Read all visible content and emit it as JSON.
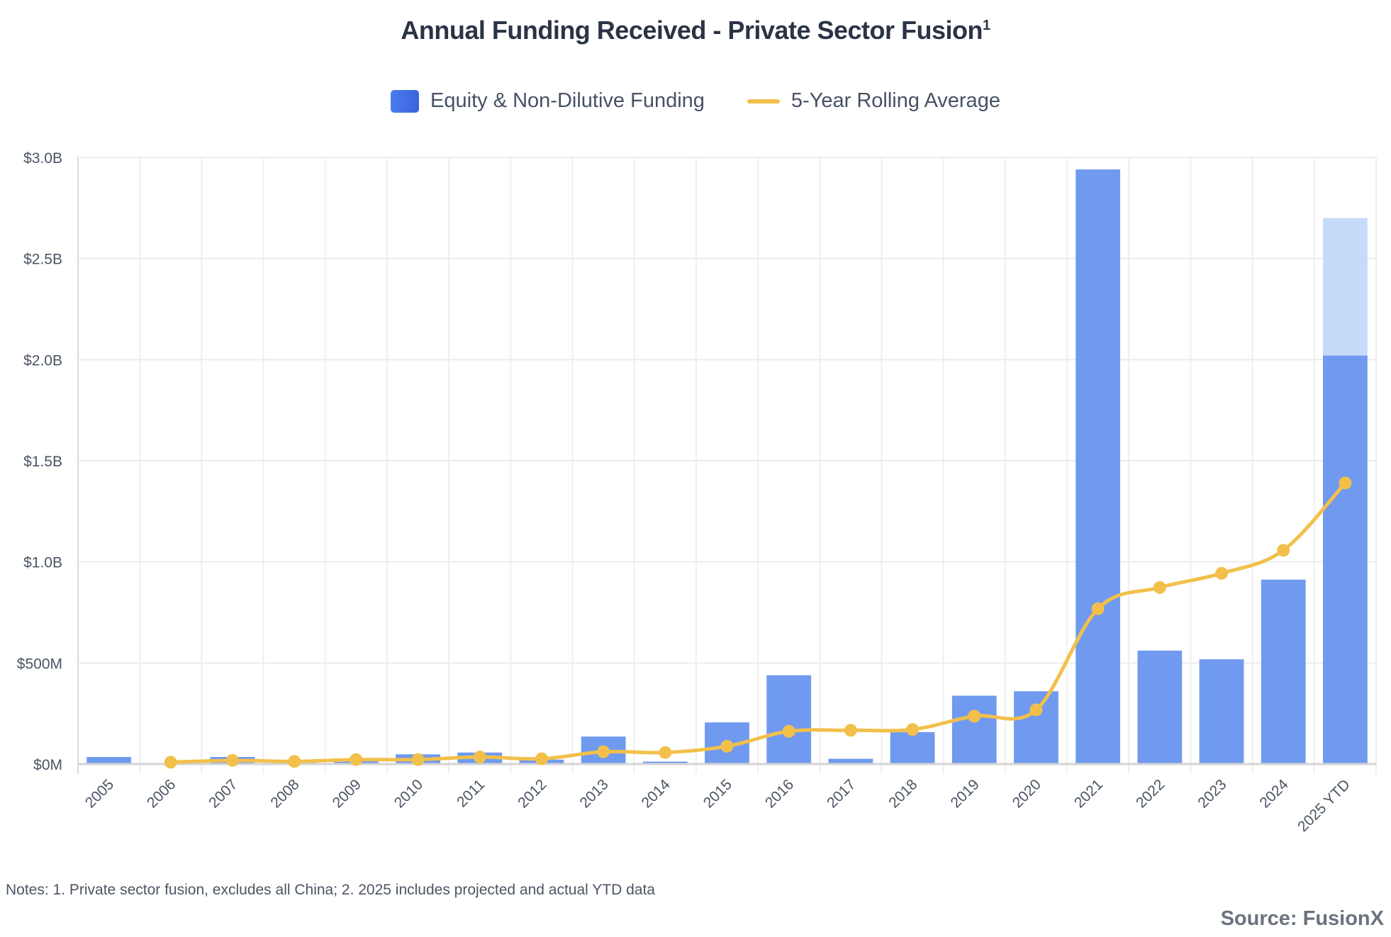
{
  "chart_data": {
    "type": "bar",
    "title": "Annual Funding Received - Private Sector Fusion",
    "title_superscript": "1",
    "categories": [
      "2005",
      "2006",
      "2007",
      "2008",
      "2009",
      "2010",
      "2011",
      "2012",
      "2013",
      "2014",
      "2015",
      "2016",
      "2017",
      "2018",
      "2019",
      "2020",
      "2021",
      "2022",
      "2023",
      "2024",
      "2025 YTD"
    ],
    "series": [
      {
        "name": "Equity & Non-Dilutive Funding",
        "type": "bar",
        "color": "#6f9af0",
        "values": [
          35,
          3,
          35,
          10,
          15,
          48,
          57,
          22,
          136,
          12,
          206,
          439,
          26,
          158,
          338,
          360,
          2940,
          561,
          518,
          912,
          2020
        ]
      },
      {
        "name": "2025 Projected",
        "type": "bar-stacked",
        "color": "#c6dbf9",
        "values": [
          null,
          null,
          null,
          null,
          null,
          null,
          null,
          null,
          null,
          null,
          null,
          null,
          null,
          null,
          null,
          null,
          null,
          null,
          null,
          null,
          680
        ]
      },
      {
        "name": "5-Year Rolling Average",
        "type": "line",
        "color": "#f2c04a",
        "values": [
          null,
          9,
          18,
          13,
          22,
          22,
          35,
          26,
          61,
          57,
          88,
          162,
          167,
          171,
          237,
          268,
          768,
          873,
          943,
          1057,
          1390
        ]
      }
    ],
    "legend": [
      {
        "label": "Equity & Non-Dilutive Funding",
        "color": "#4271e6"
      },
      {
        "label": "5-Year Rolling Average",
        "color": "#f2c04a"
      }
    ],
    "legend_placement": "top-center",
    "ylabel": "",
    "xlabel": "",
    "units": "USD millions",
    "ylim": [
      0,
      3000
    ],
    "yticks": [
      0,
      500,
      1000,
      1500,
      2000,
      2500,
      3000
    ],
    "ytick_labels": [
      "$0M",
      "$500M",
      "$1.0B",
      "$1.5B",
      "$2.0B",
      "$2.5B",
      "$3.0B"
    ],
    "grid": true
  },
  "notes": "Notes: 1. Private sector fusion, excludes all China; 2. 2025 includes projected and actual YTD data",
  "source": "Source: FusionX"
}
